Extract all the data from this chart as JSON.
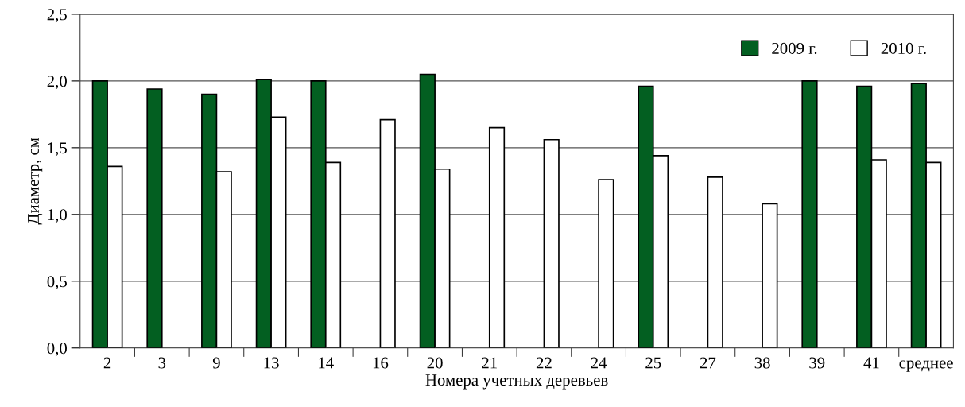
{
  "chart_data": {
    "type": "bar",
    "xlabel": "Номера учетных деревьев",
    "ylabel": "Диаметр, см",
    "categories": [
      "2",
      "3",
      "9",
      "13",
      "14",
      "16",
      "20",
      "21",
      "22",
      "24",
      "25",
      "27",
      "38",
      "39",
      "41",
      "среднее"
    ],
    "series": [
      {
        "name": "2009 г.",
        "color": "#035f21",
        "values": [
          2.0,
          1.94,
          1.9,
          2.01,
          2.0,
          null,
          2.05,
          null,
          null,
          null,
          1.96,
          null,
          null,
          2.0,
          1.96,
          1.98
        ]
      },
      {
        "name": "2010 г.",
        "color": "#ffffff",
        "values": [
          1.36,
          null,
          1.32,
          1.73,
          1.39,
          1.71,
          1.34,
          1.65,
          1.56,
          1.26,
          1.44,
          1.28,
          1.08,
          null,
          1.41,
          1.39
        ]
      }
    ],
    "ylim": [
      0,
      2.5
    ],
    "yticks": [
      {
        "value": 0,
        "label": "0,0"
      },
      {
        "value": 0.5,
        "label": "0,5"
      },
      {
        "value": 1.0,
        "label": "1,0"
      },
      {
        "value": 1.5,
        "label": "1,5"
      },
      {
        "value": 2.0,
        "label": "2,0"
      },
      {
        "value": 2.5,
        "label": "2,5"
      }
    ],
    "grid": "y",
    "legend": "top right"
  }
}
